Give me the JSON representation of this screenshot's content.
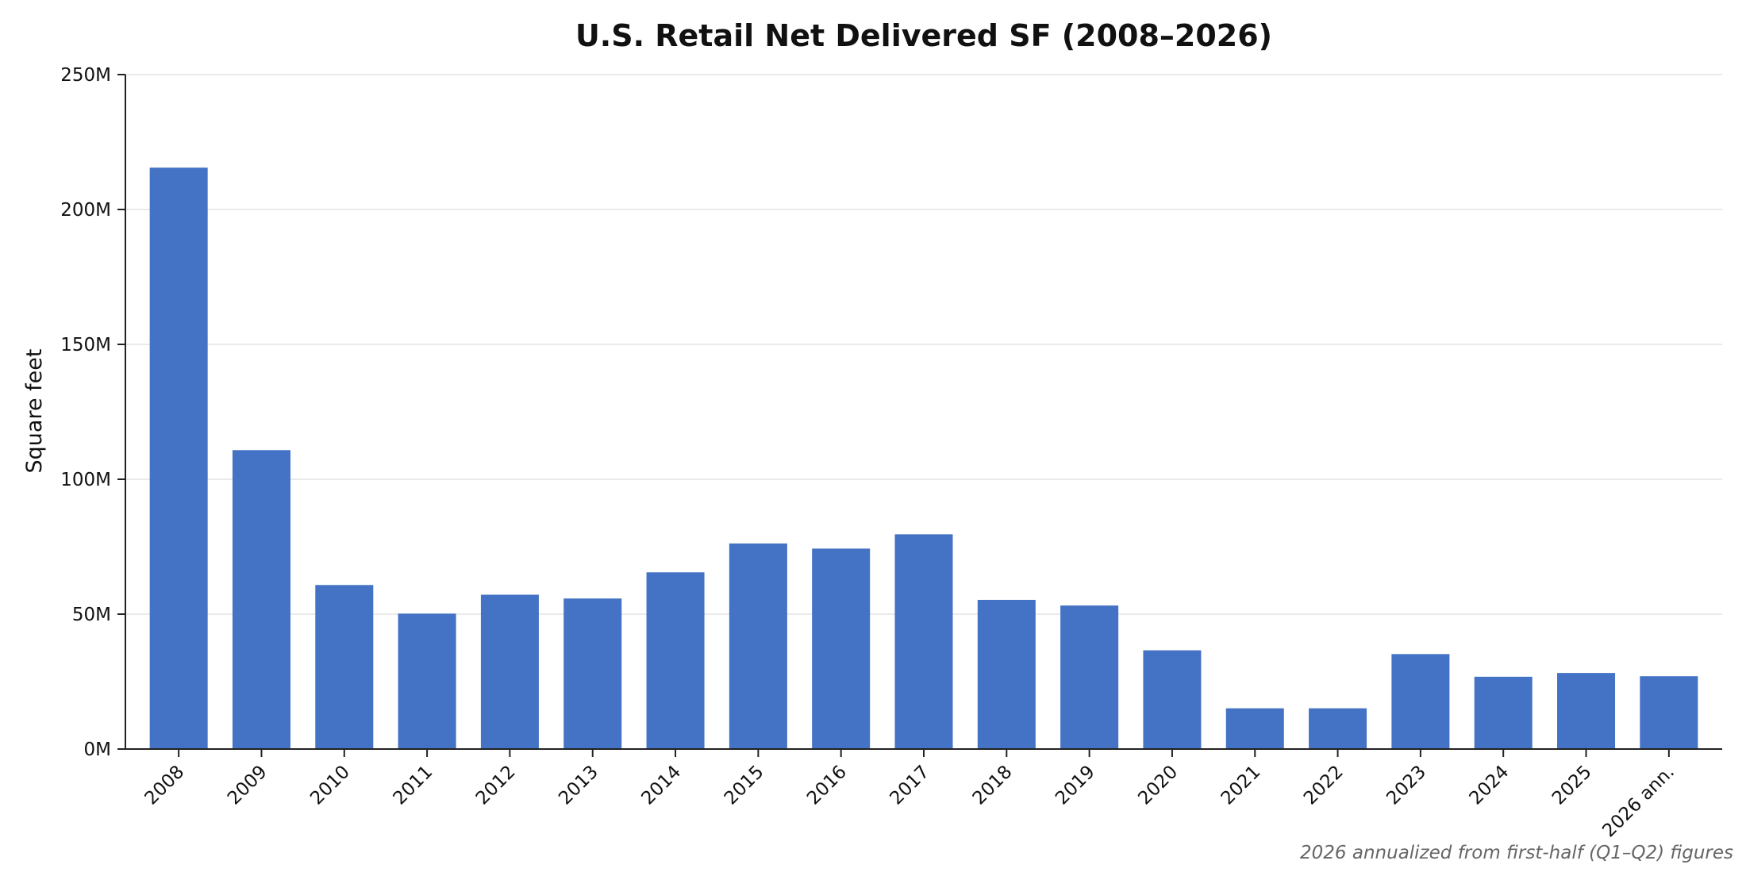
{
  "chart_data": {
    "type": "bar",
    "title": "U.S. Retail Net Delivered SF (2008–2026)",
    "xlabel": "",
    "ylabel": "Square feet",
    "footnote": "2026 annualized from first-half (Q1–Q2) figures",
    "categories": [
      "2008",
      "2009",
      "2010",
      "2011",
      "2012",
      "2013",
      "2014",
      "2015",
      "2016",
      "2017",
      "2018",
      "2019",
      "2020",
      "2021",
      "2022",
      "2023",
      "2024",
      "2025",
      "2026 ann."
    ],
    "values": [
      215.5,
      110.8,
      60.8,
      50.2,
      57.2,
      55.8,
      65.5,
      76.2,
      74.3,
      79.6,
      55.3,
      53.2,
      36.6,
      15.1,
      15.1,
      35.2,
      26.8,
      28.2,
      27.0
    ],
    "value_unit": "M",
    "ylim": [
      0,
      250
    ],
    "yticks": [
      0,
      50,
      100,
      150,
      200,
      250
    ],
    "ytick_labels": [
      "0M",
      "50M",
      "100M",
      "150M",
      "200M",
      "250M"
    ],
    "grid": "horizontal",
    "legend": "none",
    "colors": {
      "bar": "#4472C4",
      "grid": "#e3e3e3",
      "axis": "#222222",
      "footnote": "#666666"
    }
  }
}
